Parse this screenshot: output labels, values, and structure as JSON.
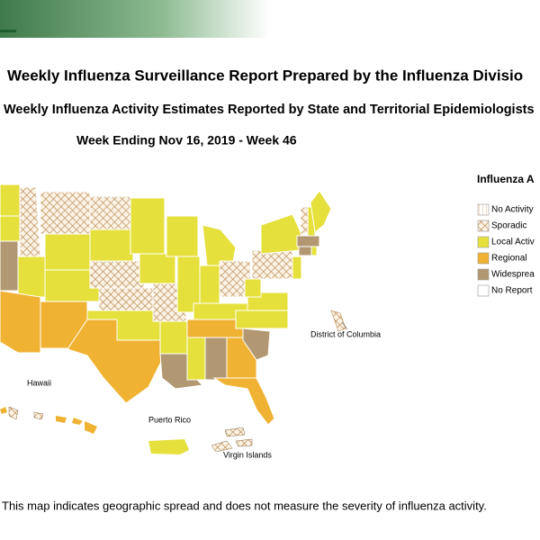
{
  "header": {
    "title": "Weekly Influenza Surveillance Report Prepared by the Influenza Divisio",
    "subtitle": "Weekly Influenza Activity Estimates Reported by State and Territorial Epidemiologists",
    "week": "Week Ending Nov 16, 2019 - Week 46"
  },
  "legend": {
    "title": "Influenza A",
    "items": [
      "No Activity",
      "Sporadic",
      "Local Activ",
      "Regional",
      "Widesprea",
      "No Report"
    ]
  },
  "map_labels": {
    "hawaii": "Hawaii",
    "puerto_rico": "Puerto Rico",
    "virgin_islands": "Virgin Islands",
    "dc": "District of Columbia"
  },
  "footnote": "This map indicates geographic spread and does not measure the severity of influenza activity."
}
